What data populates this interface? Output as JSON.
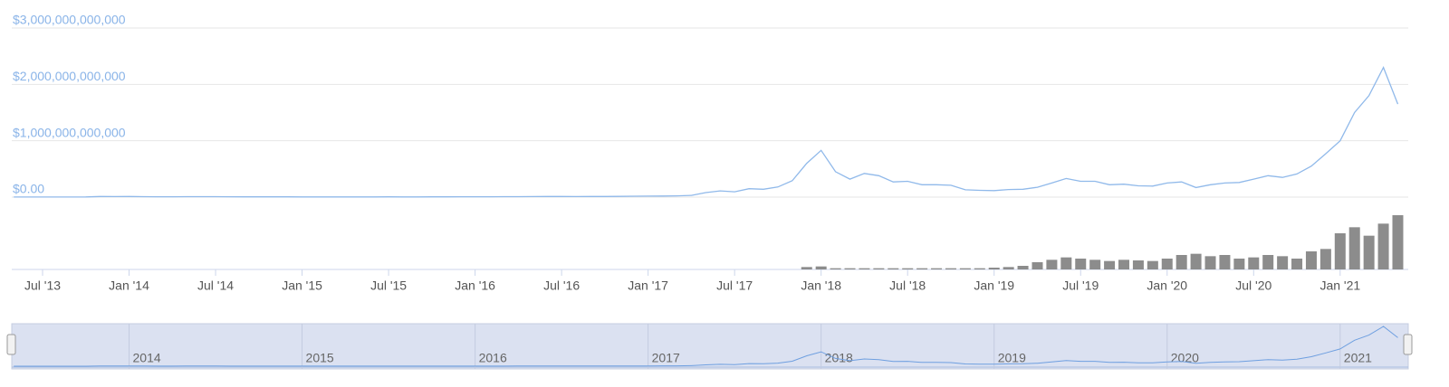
{
  "chart_data": {
    "type": "line",
    "x": [
      "2013-05",
      "2013-06",
      "2013-07",
      "2013-08",
      "2013-09",
      "2013-10",
      "2013-11",
      "2013-12",
      "2014-01",
      "2014-02",
      "2014-03",
      "2014-04",
      "2014-05",
      "2014-06",
      "2014-07",
      "2014-08",
      "2014-09",
      "2014-10",
      "2014-11",
      "2014-12",
      "2015-01",
      "2015-02",
      "2015-03",
      "2015-04",
      "2015-05",
      "2015-06",
      "2015-07",
      "2015-08",
      "2015-09",
      "2015-10",
      "2015-11",
      "2015-12",
      "2016-01",
      "2016-02",
      "2016-03",
      "2016-04",
      "2016-05",
      "2016-06",
      "2016-07",
      "2016-08",
      "2016-09",
      "2016-10",
      "2016-11",
      "2016-12",
      "2017-01",
      "2017-02",
      "2017-03",
      "2017-04",
      "2017-05",
      "2017-06",
      "2017-07",
      "2017-08",
      "2017-09",
      "2017-10",
      "2017-11",
      "2017-12",
      "2018-01",
      "2018-02",
      "2018-03",
      "2018-04",
      "2018-05",
      "2018-06",
      "2018-07",
      "2018-08",
      "2018-09",
      "2018-10",
      "2018-11",
      "2018-12",
      "2019-01",
      "2019-02",
      "2019-03",
      "2019-04",
      "2019-05",
      "2019-06",
      "2019-07",
      "2019-08",
      "2019-09",
      "2019-10",
      "2019-11",
      "2019-12",
      "2020-01",
      "2020-02",
      "2020-03",
      "2020-04",
      "2020-05",
      "2020-06",
      "2020-07",
      "2020-08",
      "2020-09",
      "2020-10",
      "2020-11",
      "2020-12",
      "2021-01",
      "2021-02",
      "2021-03",
      "2021-04",
      "2021-05"
    ],
    "series": [
      {
        "color": "#90b9ea",
        "values": [
          1500000000.0,
          1300000000.0,
          1200000000.0,
          1500000000.0,
          1700000000.0,
          2500000000.0,
          12000000000.0,
          9000000000.0,
          11000000000.0,
          8000000000.0,
          6500000000.0,
          6000000000.0,
          8000000000.0,
          8500000000.0,
          8000000000.0,
          6500000000.0,
          5500000000.0,
          4800000000.0,
          5200000000.0,
          4500000000.0,
          3500000000.0,
          3500000000.0,
          3500000000.0,
          3400000000.0,
          3400000000.0,
          3700000000.0,
          4500000000.0,
          3600000000.0,
          3600000000.0,
          4700000000.0,
          5500000000.0,
          6500000000.0,
          6500000000.0,
          7000000000.0,
          7500000000.0,
          8000000000.0,
          9500000000.0,
          11000000000.0,
          11000000000.0,
          10000000000.0,
          10500000000.0,
          11500000000.0,
          12500000000.0,
          16000000000.0,
          17000000000.0,
          20000000000.0,
          22000000000.0,
          30000000000.0,
          80000000000.0,
          110000000000.0,
          95000000000.0,
          150000000000.0,
          140000000000.0,
          180000000000.0,
          290000000000.0,
          600000000000.0,
          830000000000.0,
          450000000000.0,
          320000000000.0,
          420000000000.0,
          380000000000.0,
          270000000000.0,
          280000000000.0,
          220000000000.0,
          220000000000.0,
          210000000000.0,
          130000000000.0,
          120000000000.0,
          115000000000.0,
          135000000000.0,
          140000000000.0,
          175000000000.0,
          250000000000.0,
          330000000000.0,
          280000000000.0,
          280000000000.0,
          220000000000.0,
          230000000000.0,
          200000000000.0,
          195000000000.0,
          250000000000.0,
          270000000000.0,
          170000000000.0,
          220000000000.0,
          250000000000.0,
          260000000000.0,
          320000000000.0,
          380000000000.0,
          350000000000.0,
          410000000000.0,
          550000000000.0,
          770000000000.0,
          1000000000000.0,
          1500000000000.0,
          1800000000000.0,
          2300000000000.0,
          1650000000000.0
        ]
      },
      {
        "color": "#8c8c8c",
        "axis": "y2",
        "values": [
          null,
          null,
          null,
          null,
          null,
          null,
          null,
          null,
          null,
          null,
          null,
          null,
          null,
          null,
          null,
          null,
          null,
          null,
          null,
          null,
          null,
          null,
          null,
          null,
          null,
          null,
          null,
          null,
          null,
          null,
          null,
          null,
          null,
          null,
          null,
          null,
          null,
          null,
          null,
          null,
          null,
          null,
          null,
          null,
          null,
          null,
          null,
          null,
          null,
          null,
          null,
          null,
          null,
          null,
          null,
          20000000000.0,
          25000000000.0,
          10000000000.0,
          10000000000.0,
          10000000000.0,
          10000000000.0,
          10000000000.0,
          10000000000.0,
          10000000000.0,
          10000000000.0,
          10000000000.0,
          10000000000.0,
          10000000000.0,
          15000000000.0,
          20000000000.0,
          30000000000.0,
          60000000000.0,
          80000000000.0,
          100000000000.0,
          90000000000.0,
          80000000000.0,
          70000000000.0,
          80000000000.0,
          75000000000.0,
          70000000000.0,
          90000000000.0,
          120000000000.0,
          130000000000.0,
          110000000000.0,
          120000000000.0,
          90000000000.0,
          100000000000.0,
          120000000000.0,
          110000000000.0,
          90000000000.0,
          150000000000.0,
          170000000000.0,
          300000000000.0,
          350000000000.0,
          280000000000.0,
          380000000000.0,
          450000000000.0
        ]
      }
    ],
    "ylim": [
      0,
      3000000000000.0
    ],
    "yticks": [
      {
        "value": 0,
        "label": "$0.00"
      },
      {
        "value": 1000000000000.0,
        "label": "$1,000,000,000,000"
      },
      {
        "value": 2000000000000.0,
        "label": "$2,000,000,000,000"
      },
      {
        "value": 3000000000000.0,
        "label": "$3,000,000,000,000"
      }
    ],
    "y2lim": [
      0,
      450000000000.0
    ],
    "xticks": [
      {
        "value": "2013-07",
        "label": "Jul '13"
      },
      {
        "value": "2014-01",
        "label": "Jan '14"
      },
      {
        "value": "2014-07",
        "label": "Jul '14"
      },
      {
        "value": "2015-01",
        "label": "Jan '15"
      },
      {
        "value": "2015-07",
        "label": "Jul '15"
      },
      {
        "value": "2016-01",
        "label": "Jan '16"
      },
      {
        "value": "2016-07",
        "label": "Jul '16"
      },
      {
        "value": "2017-01",
        "label": "Jan '17"
      },
      {
        "value": "2017-07",
        "label": "Jul '17"
      },
      {
        "value": "2018-01",
        "label": "Jan '18"
      },
      {
        "value": "2018-07",
        "label": "Jul '18"
      },
      {
        "value": "2019-01",
        "label": "Jan '19"
      },
      {
        "value": "2019-07",
        "label": "Jul '19"
      },
      {
        "value": "2020-01",
        "label": "Jan '20"
      },
      {
        "value": "2020-07",
        "label": "Jul '20"
      },
      {
        "value": "2021-01",
        "label": "Jan '21"
      }
    ],
    "navigator_ticks": [
      {
        "value": "2014-01",
        "label": "2014"
      },
      {
        "value": "2015-01",
        "label": "2015"
      },
      {
        "value": "2016-01",
        "label": "2016"
      },
      {
        "value": "2017-01",
        "label": "2017"
      },
      {
        "value": "2018-01",
        "label": "2018"
      },
      {
        "value": "2019-01",
        "label": "2019"
      },
      {
        "value": "2020-01",
        "label": "2020"
      },
      {
        "value": "2021-01",
        "label": "2021"
      }
    ],
    "grid": true
  }
}
